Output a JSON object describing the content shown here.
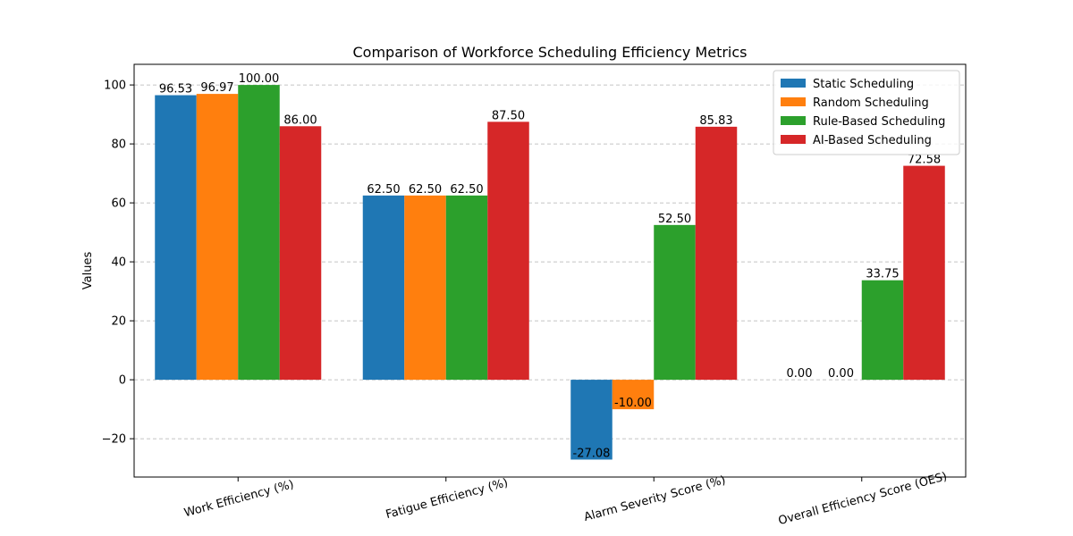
{
  "chart_data": {
    "type": "bar",
    "title": "Comparison of Workforce Scheduling Efficiency Metrics",
    "xlabel": "",
    "ylabel": "Values",
    "ylim": [
      -33,
      107
    ],
    "yticks": [
      -20,
      0,
      20,
      40,
      60,
      80,
      100
    ],
    "ytick_labels": [
      "−20",
      "0",
      "20",
      "40",
      "60",
      "80",
      "100"
    ],
    "grid": true,
    "legend_position": "top-right",
    "categories": [
      "Work Efficiency (%)",
      "Fatigue Efficiency (%)",
      "Alarm Severity Score (%)",
      "Overall Efficiency Score (OES)"
    ],
    "series": [
      {
        "name": "Static Scheduling",
        "color": "#1f77b4",
        "values": [
          96.53,
          62.5,
          -27.08,
          0.0
        ],
        "labels": [
          "96.53",
          "62.50",
          "-27.08",
          "0.00"
        ]
      },
      {
        "name": "Random Scheduling",
        "color": "#ff7f0e",
        "values": [
          96.97,
          62.5,
          -10.0,
          0.0
        ],
        "labels": [
          "96.97",
          "62.50",
          "-10.00",
          "0.00"
        ]
      },
      {
        "name": "Rule-Based Scheduling",
        "color": "#2ca02c",
        "values": [
          100.0,
          62.5,
          52.5,
          33.75
        ],
        "labels": [
          "100.00",
          "62.50",
          "52.50",
          "33.75"
        ]
      },
      {
        "name": "AI-Based Scheduling",
        "color": "#d62728",
        "values": [
          86.0,
          87.5,
          85.83,
          72.58
        ],
        "labels": [
          "86.00",
          "87.50",
          "85.83",
          "72.58"
        ]
      }
    ]
  }
}
